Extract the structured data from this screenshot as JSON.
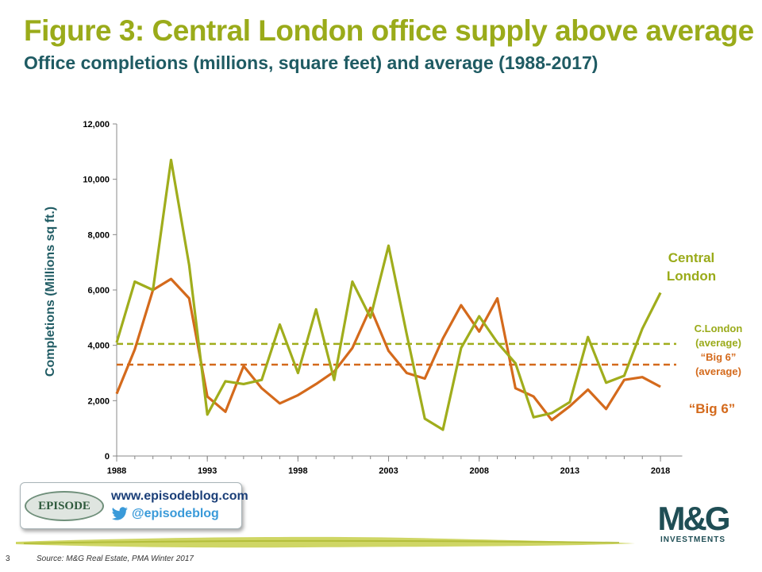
{
  "title": "Figure 3: Central London office supply above average",
  "subtitle": "Office completions (millions, square feet) and average (1988-2017)",
  "colors": {
    "title": "#9aab1a",
    "subtitle": "#1f5b63",
    "central": "#a0ad1c",
    "big6": "#d46a1c"
  },
  "chart_data": {
    "type": "line",
    "title": "Figure 3: Central London office supply above average",
    "subtitle": "Office completions (millions, square feet) and average (1988-2017)",
    "xlabel": "",
    "ylabel": "Completions (Millions sq ft.)",
    "xlim": [
      1988,
      2018.5
    ],
    "ylim": [
      0,
      12000
    ],
    "xticks": [
      1988,
      1993,
      1998,
      2003,
      2008,
      2013,
      2018
    ],
    "xtick_labels": [
      "1988",
      "1993",
      "1998",
      "2003",
      "2008",
      "2013",
      "2018"
    ],
    "yticks": [
      0,
      2000,
      4000,
      6000,
      8000,
      10000,
      12000
    ],
    "ytick_labels": [
      "0",
      "2,000",
      "4,000",
      "6,000",
      "8,000",
      "10,000",
      "12,000"
    ],
    "grid": false,
    "x": [
      1988,
      1989,
      1990,
      1991,
      1992,
      1993,
      1994,
      1995,
      1996,
      1997,
      1998,
      1999,
      2000,
      2001,
      2002,
      2003,
      2004,
      2005,
      2006,
      2007,
      2008,
      2009,
      2010,
      2011,
      2012,
      2013,
      2014,
      2015,
      2016,
      2017,
      2018
    ],
    "series": [
      {
        "name": "Central London",
        "color": "#a0ad1c",
        "values": [
          4100,
          6300,
          6000,
          10700,
          6900,
          1500,
          2700,
          2600,
          2750,
          4750,
          3000,
          5300,
          2750,
          6300,
          5000,
          7600,
          4400,
          1350,
          950,
          3900,
          5050,
          4100,
          3350,
          1400,
          1550,
          1950,
          4300,
          2650,
          2900,
          4600,
          5900
        ]
      },
      {
        "name": "“Big 6”",
        "color": "#d46a1c",
        "values": [
          2250,
          3850,
          6000,
          6400,
          5700,
          2150,
          1600,
          3250,
          2450,
          1900,
          2200,
          2600,
          3050,
          3900,
          5350,
          3800,
          3000,
          2800,
          4250,
          5450,
          4500,
          5700,
          2450,
          2150,
          1300,
          1800,
          2400,
          1700,
          2750,
          2850,
          2500
        ]
      }
    ],
    "averages": [
      {
        "name": "C.London (average)",
        "value": 4050,
        "color": "#a0ad1c",
        "style": "dashed"
      },
      {
        "name": "“Big 6” (average)",
        "value": 3300,
        "color": "#d46a1c",
        "style": "dashed"
      }
    ],
    "annotations": {
      "central_line1": "Central",
      "central_line2": "London",
      "cavg_line1": "C.London",
      "cavg_line2": "(average)",
      "bavg_line1": "“Big 6”",
      "bavg_line2": "(average)",
      "big6": "“Big 6”"
    }
  },
  "badge": {
    "logo_text": "EPISODE",
    "url": "www.episodeblog.com",
    "twitter": "@episodeblog",
    "icon": "twitter-bird-icon"
  },
  "brand": {
    "name": "M&G",
    "sub": "INVESTMENTS"
  },
  "footer": {
    "page_number": "3",
    "source": "Source: M&G Real Estate, PMA Winter 2017"
  }
}
